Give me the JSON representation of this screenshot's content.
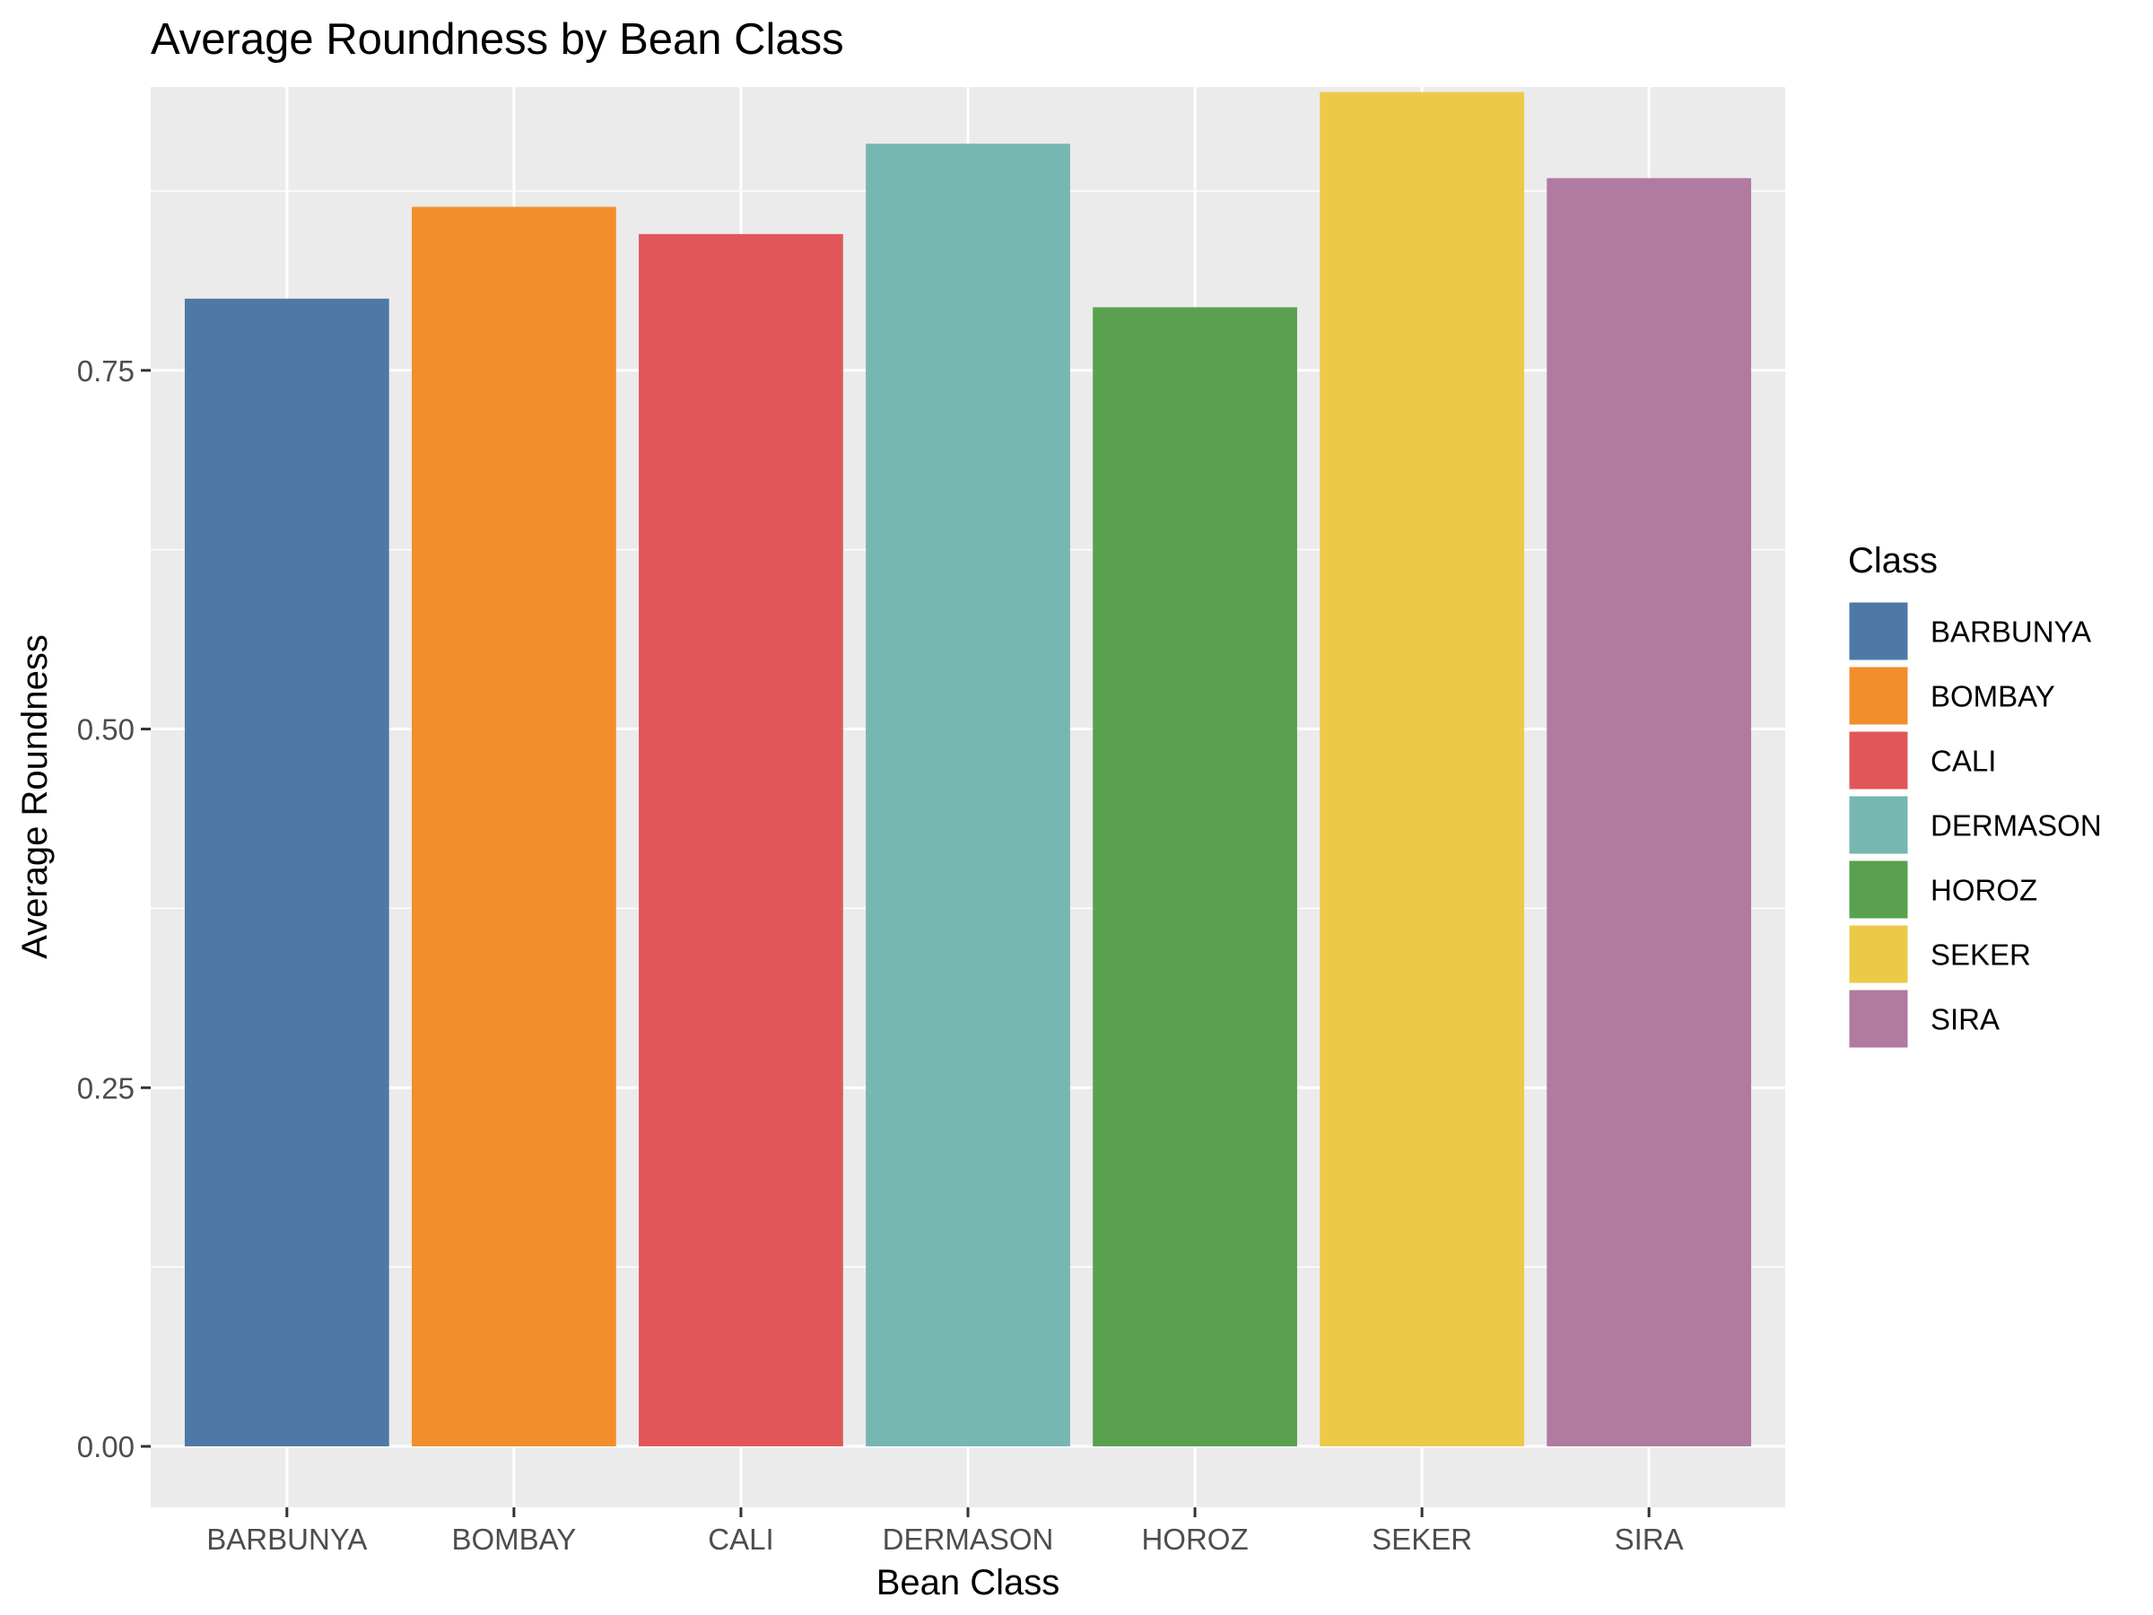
{
  "chart_data": {
    "type": "bar",
    "title": "Average Roundness by Bean Class",
    "xlabel": "Bean Class",
    "ylabel": "Average Roundness",
    "categories": [
      "BARBUNYA",
      "BOMBAY",
      "CALI",
      "DERMASON",
      "HOROZ",
      "SEKER",
      "SIRA"
    ],
    "values": [
      0.8,
      0.864,
      0.845,
      0.908,
      0.794,
      0.944,
      0.884
    ],
    "colors": [
      "#4E79A7",
      "#F28E2B",
      "#E15759",
      "#76B7B2",
      "#59A14F",
      "#EDC948",
      "#B07AA1"
    ],
    "ylim": [
      -0.0425,
      0.9475
    ],
    "yticks": [
      0.0,
      0.25,
      0.5,
      0.75
    ],
    "ytick_labels": [
      "0.00",
      "0.25",
      "0.50",
      "0.75"
    ],
    "grid": true,
    "legend": {
      "title": "Class",
      "position": "right",
      "entries": [
        "BARBUNYA",
        "BOMBAY",
        "CALI",
        "DERMASON",
        "HOROZ",
        "SEKER",
        "SIRA"
      ]
    }
  }
}
